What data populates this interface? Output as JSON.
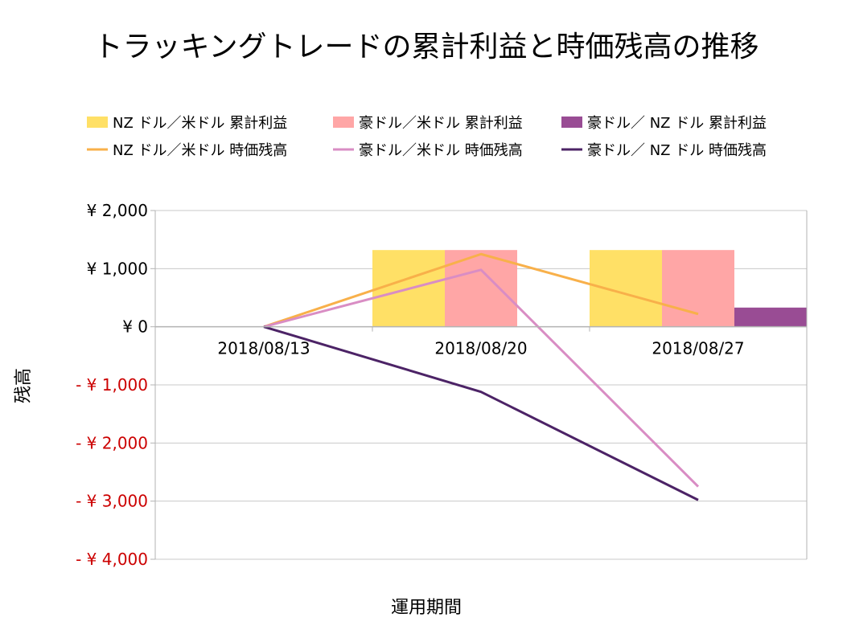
{
  "chart_data": {
    "type": "bar+line",
    "title": "トラッキングトレードの累計利益と時価残高の推移",
    "xlabel": "運用期間",
    "ylabel": "残高",
    "ylim": [
      -4000,
      2000
    ],
    "yticks": [
      2000,
      1000,
      0,
      -1000,
      -2000,
      -3000,
      -4000
    ],
    "ytick_labels": [
      "¥ 2,000",
      "¥ 1,000",
      "¥ 0",
      "- ¥ 1,000",
      "- ¥ 2,000",
      "- ¥ 3,000",
      "- ¥ 4,000"
    ],
    "categories": [
      "2018/08/13",
      "2018/08/20",
      "2018/08/27"
    ],
    "bar_series": [
      {
        "name": "NZ ドル／米ドル 累計利益",
        "color": "#FFE066",
        "values": [
          0,
          1320,
          1320
        ]
      },
      {
        "name": "豪ドル／米ドル 累計利益",
        "color": "#FFA6A6",
        "values": [
          0,
          1320,
          1320
        ]
      },
      {
        "name": "豪ドル／ NZ ドル 累計利益",
        "color": "#994C94",
        "values": [
          0,
          0,
          330
        ]
      }
    ],
    "line_series": [
      {
        "name": "NZ ドル／米ドル 時価残高",
        "color": "#F8B04A",
        "values": [
          0,
          1250,
          220
        ]
      },
      {
        "name": "豪ドル／米ドル 時価残高",
        "color": "#D98DC4",
        "values": [
          0,
          980,
          -2750
        ]
      },
      {
        "name": "豪ドル／ NZ ドル 時価残高",
        "color": "#4C2366",
        "values": [
          0,
          -1120,
          -2980
        ]
      }
    ],
    "grid": true,
    "legend": "top",
    "negative_tick_color": "#CC0000"
  }
}
